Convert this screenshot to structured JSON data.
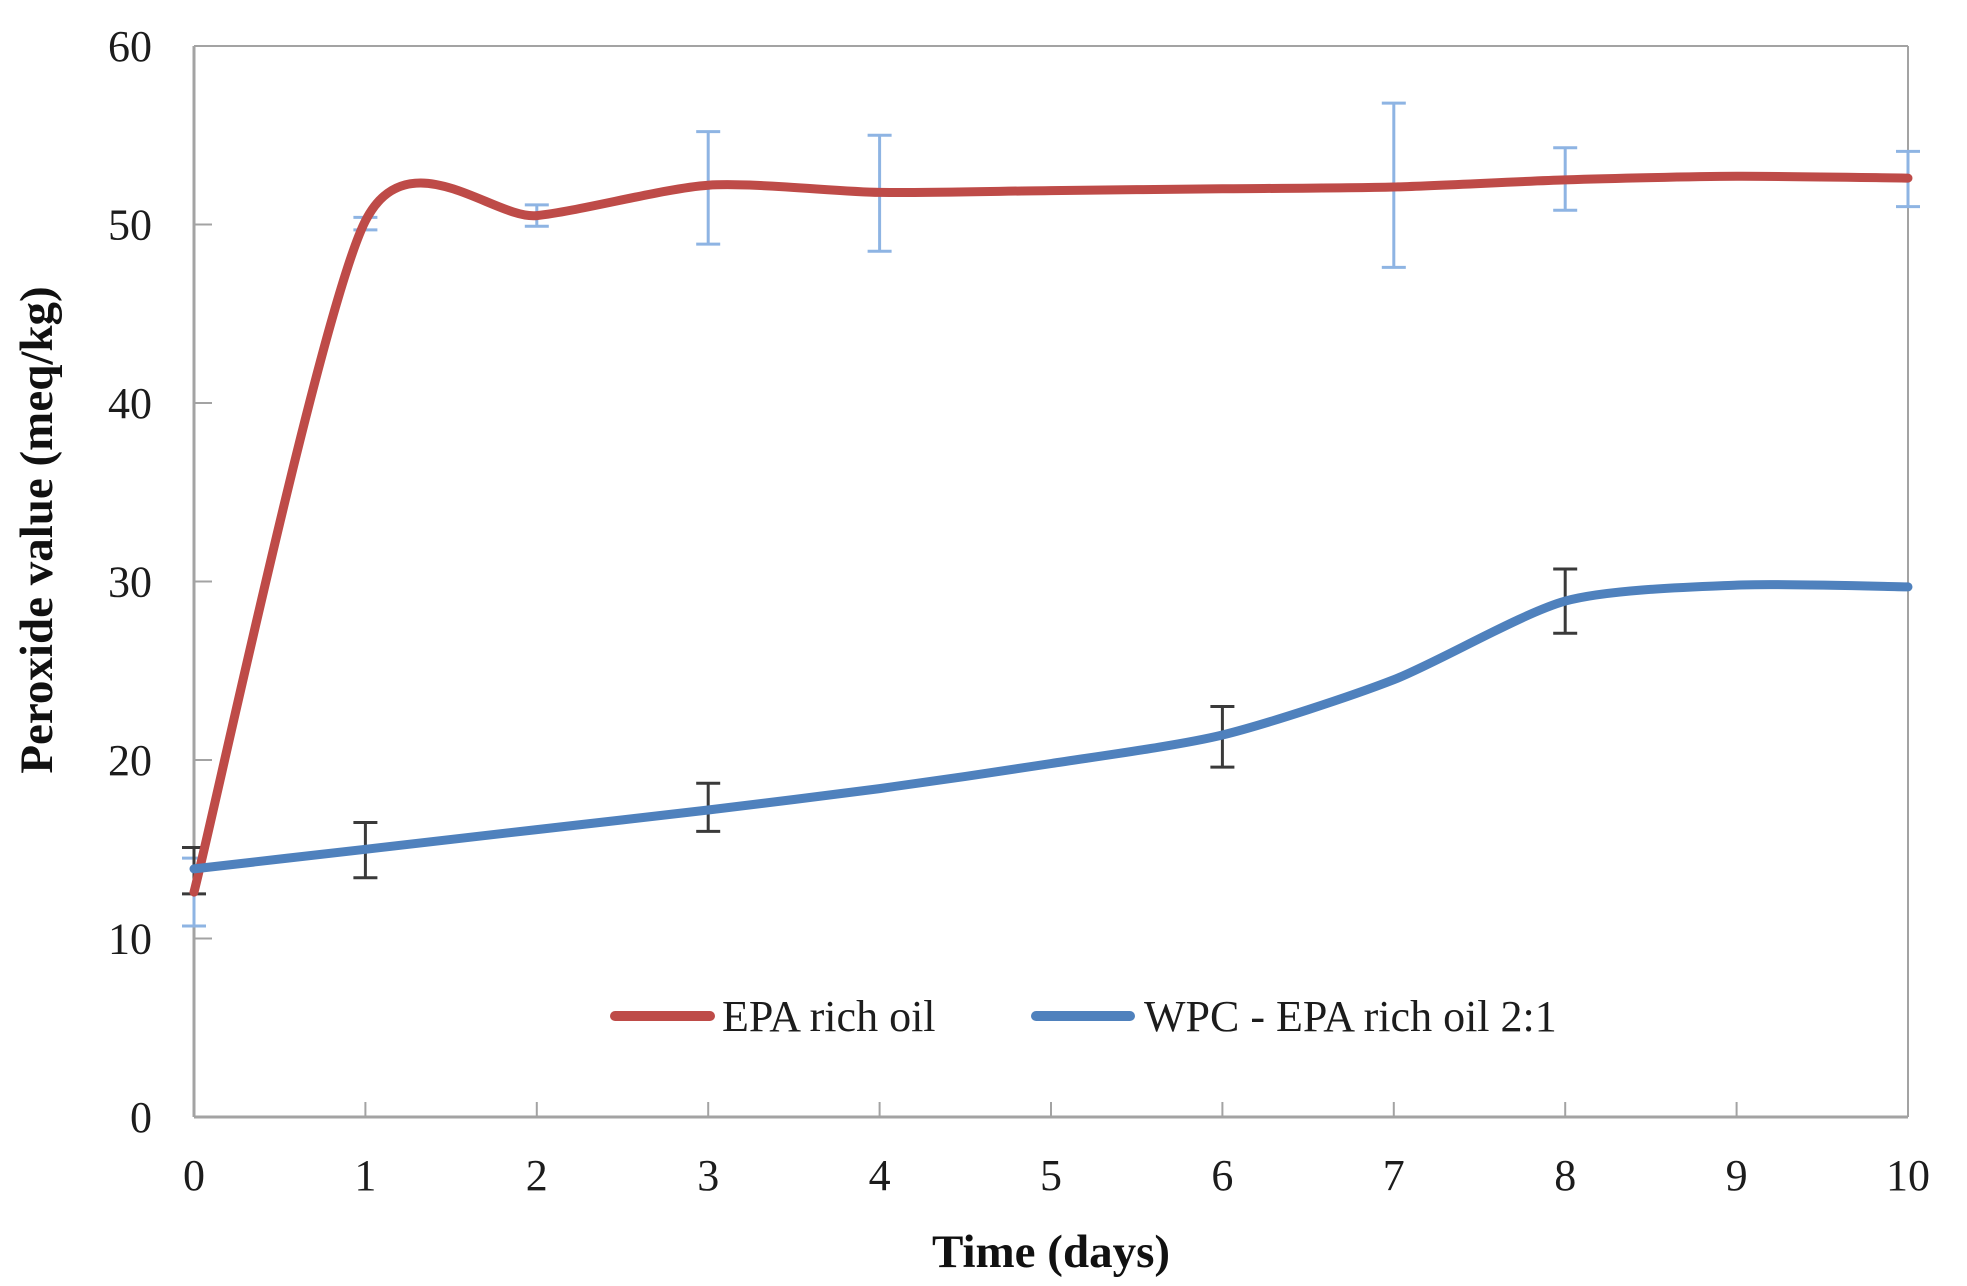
{
  "figure": {
    "title": "",
    "x_axis_title": "Time (days)",
    "y_axis_title": "Peroxide value (meq/kg)"
  },
  "legend": {
    "items": [
      {
        "label": "EPA rich oil",
        "color": "#BE4B48"
      },
      {
        "label": "WPC - EPA rich oil 2:1",
        "color": "#4F81BD"
      }
    ]
  },
  "chart_data": {
    "type": "line",
    "smooth": true,
    "x": [
      0,
      1,
      2,
      3,
      4,
      5,
      6,
      7,
      8,
      9,
      10
    ],
    "x_ticks": [
      0,
      1,
      2,
      3,
      4,
      5,
      6,
      7,
      8,
      9,
      10
    ],
    "y_ticks": [
      0,
      10,
      20,
      30,
      40,
      50,
      60
    ],
    "xlim": [
      0,
      10
    ],
    "ylim": [
      0,
      60
    ],
    "xlabel": "Time (days)",
    "ylabel": "Peroxide value (meq/kg)",
    "grid": false,
    "legend_position": "bottom-center-inside",
    "axis_color": "#A3A3A3",
    "tick_label_color": "#1c1c1c",
    "series": [
      {
        "name": "EPA rich oil",
        "color": "#BE4B48",
        "error_color": "#8EB4E3",
        "values": [
          12.6,
          50.2,
          50.5,
          52.2,
          51.8,
          51.9,
          52.0,
          52.1,
          52.5,
          52.7,
          52.6
        ],
        "error_bars": [
          [
            10.7,
            14.5
          ],
          [
            49.7,
            50.4
          ],
          [
            49.9,
            51.1
          ],
          [
            48.9,
            55.2
          ],
          [
            48.5,
            55.0
          ],
          null,
          null,
          [
            47.6,
            56.8
          ],
          [
            50.8,
            54.3
          ],
          null,
          [
            51.0,
            54.1
          ]
        ]
      },
      {
        "name": "WPC - EPA rich oil 2:1",
        "color": "#4F81BD",
        "error_color": "#3A3A3A",
        "values": [
          13.9,
          15.0,
          16.1,
          17.2,
          18.4,
          19.8,
          21.4,
          24.5,
          28.9,
          29.8,
          29.7
        ],
        "error_bars": [
          [
            12.5,
            15.1
          ],
          [
            13.4,
            16.5
          ],
          null,
          [
            16.0,
            18.7
          ],
          null,
          null,
          [
            19.6,
            23.0
          ],
          null,
          [
            27.1,
            30.7
          ],
          null,
          null
        ]
      }
    ]
  }
}
